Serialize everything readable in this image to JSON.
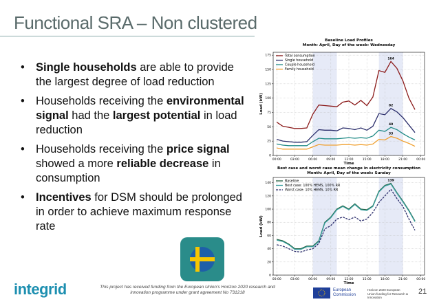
{
  "slide": {
    "title": "Functional SRA – Non clustered",
    "bullets": [
      [
        {
          "text": "Single households",
          "bold": true
        },
        {
          "text": " are able to provide the largest degree of load reduction",
          "bold": false
        }
      ],
      [
        {
          "text": "Households receiving the ",
          "bold": false
        },
        {
          "text": "environmental signal",
          "bold": true
        },
        {
          "text": " had the ",
          "bold": false
        },
        {
          "text": "largest potential",
          "bold": true
        },
        {
          "text": " in load reduction",
          "bold": false
        }
      ],
      [
        {
          "text": "Households receiving the ",
          "bold": false
        },
        {
          "text": "price signal",
          "bold": true
        },
        {
          "text": " showed a more ",
          "bold": false
        },
        {
          "text": "reliable decrease",
          "bold": true
        },
        {
          "text": " in consumption",
          "bold": false
        }
      ],
      [
        {
          "text": "Incentives",
          "bold": true
        },
        {
          "text": " for DSM should be prolonged in order to achieve maximum response rate",
          "bold": false
        }
      ]
    ],
    "logo": "integrid",
    "funding_text": "This project has received funding from the European Union’s Horizon 2020 research and innovation programme under grant agreement No 731218",
    "eu_label": "European Commission",
    "horizon_label": "Horizon 2020 European Union funding for Research & Innovation",
    "page_number": "21"
  },
  "chart_data": [
    {
      "type": "line",
      "title": "Baseline Load Profiles",
      "subtitle": "Month: April, Day of the week: Wednesday",
      "x_label": "Time",
      "y_label": "Load (kW)",
      "x": [
        0,
        1,
        2,
        3,
        4,
        5,
        6,
        7,
        8,
        9,
        10,
        11,
        12,
        13,
        14,
        15,
        16,
        17,
        18,
        19,
        20,
        21,
        22,
        23
      ],
      "xlim": [
        -0.6,
        24.6
      ],
      "xticks": [
        {
          "value": 0,
          "label": "00:00"
        },
        {
          "value": 3,
          "label": "03:00"
        },
        {
          "value": 6,
          "label": "06:00"
        },
        {
          "value": 9,
          "label": "09:00"
        },
        {
          "value": 12,
          "label": "12:00"
        },
        {
          "value": 15,
          "label": "15:00"
        },
        {
          "value": 18,
          "label": "18:00"
        },
        {
          "value": 21,
          "label": "21:00"
        },
        {
          "value": 24,
          "label": "00:00"
        }
      ],
      "ylim": [
        0,
        180
      ],
      "yticks": [
        0,
        25,
        50,
        75,
        100,
        125,
        150,
        175
      ],
      "grid": true,
      "highlight": [
        [
          6,
          10
        ],
        [
          17,
          21
        ]
      ],
      "series": [
        {
          "name": "Total consumption",
          "color": "#8b1a1a",
          "dashed": false,
          "values": [
            58,
            51,
            49,
            47,
            47,
            48,
            72,
            88,
            87,
            86,
            85,
            93,
            95,
            88,
            96,
            87,
            102,
            148,
            145,
            164,
            152,
            130,
            100,
            80
          ]
        },
        {
          "name": "Single household",
          "color": "#2a2d6b",
          "dashed": false,
          "values": [
            28,
            25,
            24,
            23,
            23,
            24,
            35,
            45,
            44,
            44,
            43,
            48,
            47,
            45,
            48,
            44,
            51,
            73,
            71,
            82,
            76,
            66,
            53,
            40
          ]
        },
        {
          "name": "Couple household",
          "color": "#1f8a86",
          "dashed": false,
          "values": [
            20,
            18,
            17,
            17,
            17,
            17,
            24,
            30,
            29,
            29,
            29,
            30,
            31,
            30,
            31,
            30,
            34,
            44,
            42,
            49,
            45,
            38,
            32,
            27
          ]
        },
        {
          "name": "Family household",
          "color": "#f0a030",
          "dashed": false,
          "values": [
            13,
            11,
            11,
            11,
            11,
            11,
            15,
            19,
            18,
            18,
            18,
            19,
            19,
            18,
            19,
            18,
            20,
            28,
            27,
            33,
            30,
            25,
            21,
            16
          ]
        }
      ],
      "annotations": [
        {
          "text": "164",
          "x": 19,
          "y": 164
        },
        {
          "text": "82",
          "x": 19,
          "y": 82
        },
        {
          "text": "49",
          "x": 19,
          "y": 49
        },
        {
          "text": "33",
          "x": 19,
          "y": 33
        }
      ]
    },
    {
      "type": "line",
      "title": "Best case and worst case mean change in electricity consumption",
      "subtitle": "Month: April, Day of the week: Sunday",
      "x_label": "Time",
      "y_label": "Load (kW)",
      "x": [
        0,
        1,
        2,
        3,
        4,
        5,
        6,
        7,
        8,
        9,
        10,
        11,
        12,
        13,
        14,
        15,
        16,
        17,
        18,
        19,
        20,
        21,
        22,
        23
      ],
      "xlim": [
        -0.6,
        24.6
      ],
      "xticks": [
        {
          "value": 0,
          "label": "00:00"
        },
        {
          "value": 3,
          "label": "03:00"
        },
        {
          "value": 6,
          "label": "06:00"
        },
        {
          "value": 9,
          "label": "09:00"
        },
        {
          "value": 12,
          "label": "12:00"
        },
        {
          "value": 15,
          "label": "15:00"
        },
        {
          "value": 18,
          "label": "18:00"
        },
        {
          "value": 21,
          "label": "21:00"
        },
        {
          "value": 24,
          "label": "00:00"
        }
      ],
      "ylim": [
        0,
        148
      ],
      "yticks": [
        0,
        20,
        40,
        60,
        80,
        100,
        120,
        140
      ],
      "grid": true,
      "highlight": [
        [
          6,
          10
        ],
        [
          17,
          21
        ]
      ],
      "series": [
        {
          "name": "Baseline",
          "color": "#1e5c3a",
          "dashed": false,
          "values": [
            54,
            52,
            47,
            40,
            40,
            44,
            44,
            52,
            80,
            88,
            100,
            105,
            100,
            108,
            100,
            99,
            105,
            127,
            136,
            139,
            125,
            112,
            98,
            82
          ]
        },
        {
          "name": "Best case: 100% HEMS, 100% RR",
          "color": "#3aa0a0",
          "dashed": false,
          "values": [
            53,
            51,
            46,
            39,
            39,
            43,
            43,
            51,
            79,
            87,
            99,
            104,
            99,
            107,
            99,
            98,
            104,
            126,
            135,
            138,
            124,
            111,
            97,
            81
          ]
        },
        {
          "name": "Worst case: 10% HEMS, 10% RR",
          "color": "#2a2d6b",
          "dashed": true,
          "values": [
            46,
            44,
            40,
            36,
            35,
            38,
            40,
            48,
            70,
            75,
            85,
            88,
            84,
            88,
            82,
            85,
            95,
            110,
            120,
            130,
            116,
            104,
            85,
            68
          ]
        }
      ],
      "annotations": [
        {
          "text": "139",
          "x": 19,
          "y": 139
        }
      ]
    }
  ]
}
